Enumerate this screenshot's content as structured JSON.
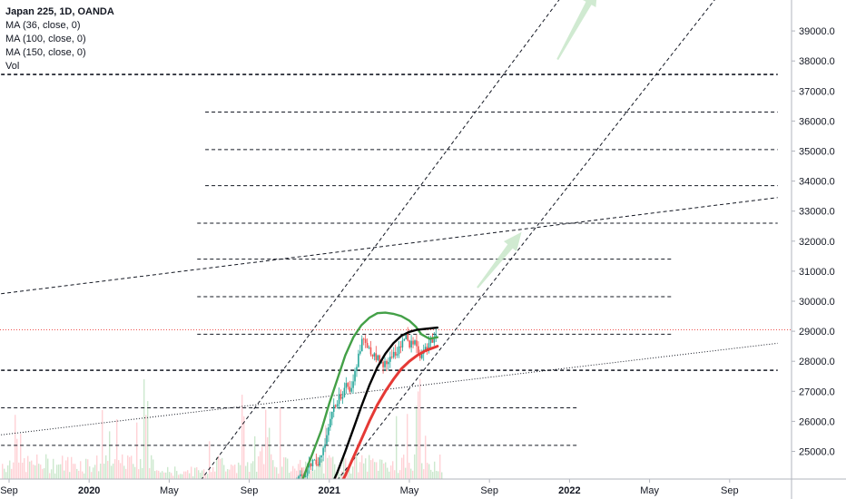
{
  "legend": {
    "title": "Japan 225, 1D, OANDA",
    "lines": [
      "MA (36, close, 0)",
      "MA (100, close, 0)",
      "MA (150, close, 0)",
      "Vol"
    ]
  },
  "chart_data": {
    "type": "line",
    "symbol": "Japan 225",
    "timeframe": "1D",
    "source": "OANDA",
    "y_axis": {
      "position": "right",
      "ticks": [
        "25000.0",
        "26000.0",
        "27000.0",
        "28000.0",
        "29000.0",
        "30000.0",
        "31000.0",
        "32000.0",
        "33000.0",
        "34000.0",
        "35000.0",
        "36000.0",
        "37000.0",
        "38000.0",
        "39000.0"
      ],
      "range": [
        23700,
        40500
      ]
    },
    "x_axis": {
      "ticks": [
        {
          "label": "Sep",
          "year": false,
          "t": 0.0
        },
        {
          "label": "2020",
          "year": true,
          "t": 1.0
        },
        {
          "label": "May",
          "year": false,
          "t": 2.0
        },
        {
          "label": "Sep",
          "year": false,
          "t": 3.0
        },
        {
          "label": "2021",
          "year": true,
          "t": 4.0
        },
        {
          "label": "May",
          "year": false,
          "t": 5.0
        },
        {
          "label": "Sep",
          "year": false,
          "t": 6.0
        },
        {
          "label": "2022",
          "year": true,
          "t": 7.0
        },
        {
          "label": "May",
          "year": false,
          "t": 8.0
        },
        {
          "label": "Sep",
          "year": false,
          "t": 9.0
        }
      ],
      "unit": "4-month intervals starting Sep 2019"
    },
    "current_price": 29050,
    "horizontal_levels": [
      {
        "y": 37550,
        "style": "bold-dashed",
        "from_t": -0.1,
        "to_t": 9.6
      },
      {
        "y": 36300,
        "style": "dashed",
        "from_t": 2.45,
        "to_t": 9.6
      },
      {
        "y": 35050,
        "style": "dashed",
        "from_t": 2.45,
        "to_t": 9.6
      },
      {
        "y": 33850,
        "style": "dashed",
        "from_t": 2.45,
        "to_t": 9.6
      },
      {
        "y": 32600,
        "style": "dashed",
        "from_t": 2.35,
        "to_t": 9.6
      },
      {
        "y": 31400,
        "style": "dashed",
        "from_t": 2.35,
        "to_t": 8.3
      },
      {
        "y": 30150,
        "style": "dashed",
        "from_t": 2.35,
        "to_t": 8.3
      },
      {
        "y": 28900,
        "style": "dashed",
        "from_t": 2.35,
        "to_t": 8.3
      },
      {
        "y": 27700,
        "style": "bold-dashed",
        "from_t": -0.1,
        "to_t": 9.6
      },
      {
        "y": 26450,
        "style": "dashed",
        "from_t": -0.1,
        "to_t": 7.1
      },
      {
        "y": 25200,
        "style": "dashed",
        "from_t": -0.1,
        "to_t": 7.1
      }
    ],
    "trend_lines": [
      {
        "style": "dashed",
        "points": [
          [
            -0.1,
            30250
          ],
          [
            9.6,
            33450
          ]
        ]
      },
      {
        "style": "dotted",
        "points": [
          [
            -0.1,
            25550
          ],
          [
            9.6,
            28600
          ]
        ]
      },
      {
        "style": "dashed",
        "points": [
          [
            2.3,
            23700
          ],
          [
            7.0,
            40500
          ]
        ]
      },
      {
        "style": "dashed",
        "points": [
          [
            4.0,
            23700
          ],
          [
            8.95,
            40500
          ]
        ]
      }
    ],
    "arrows": [
      {
        "from": [
          5.85,
          30450
        ],
        "to": [
          6.4,
          32300
        ],
        "color": "#c8e6c9"
      },
      {
        "from": [
          6.85,
          38050
        ],
        "to": [
          7.35,
          40450
        ],
        "color": "#c8e6c9"
      }
    ],
    "series": [
      {
        "name": "MA (36, close, 0)",
        "color": "#43a047",
        "points": [
          [
            3.62,
            23700
          ],
          [
            3.7,
            24300
          ],
          [
            3.8,
            25000
          ],
          [
            3.9,
            25700
          ],
          [
            4.0,
            26600
          ],
          [
            4.1,
            27400
          ],
          [
            4.2,
            28200
          ],
          [
            4.3,
            28800
          ],
          [
            4.4,
            29200
          ],
          [
            4.5,
            29450
          ],
          [
            4.6,
            29600
          ],
          [
            4.7,
            29620
          ],
          [
            4.8,
            29580
          ],
          [
            4.9,
            29500
          ],
          [
            5.0,
            29350
          ],
          [
            5.08,
            29150
          ],
          [
            5.15,
            28900
          ],
          [
            5.25,
            28750
          ],
          [
            5.35,
            28800
          ]
        ]
      },
      {
        "name": "MA (100, close, 0)",
        "color": "#000000",
        "points": [
          [
            4.0,
            23700
          ],
          [
            4.1,
            24300
          ],
          [
            4.2,
            25000
          ],
          [
            4.3,
            25750
          ],
          [
            4.4,
            26500
          ],
          [
            4.5,
            27200
          ],
          [
            4.6,
            27800
          ],
          [
            4.7,
            28250
          ],
          [
            4.8,
            28600
          ],
          [
            4.9,
            28850
          ],
          [
            5.0,
            28980
          ],
          [
            5.1,
            29050
          ],
          [
            5.2,
            29080
          ],
          [
            5.35,
            29120
          ]
        ]
      },
      {
        "name": "MA (150, close, 0)",
        "color": "#e53935",
        "points": [
          [
            4.1,
            23700
          ],
          [
            4.2,
            24200
          ],
          [
            4.3,
            24800
          ],
          [
            4.4,
            25400
          ],
          [
            4.5,
            26000
          ],
          [
            4.6,
            26550
          ],
          [
            4.7,
            27000
          ],
          [
            4.8,
            27400
          ],
          [
            4.9,
            27750
          ],
          [
            5.0,
            28000
          ],
          [
            5.1,
            28200
          ],
          [
            5.2,
            28350
          ],
          [
            5.35,
            28500
          ]
        ]
      }
    ]
  }
}
